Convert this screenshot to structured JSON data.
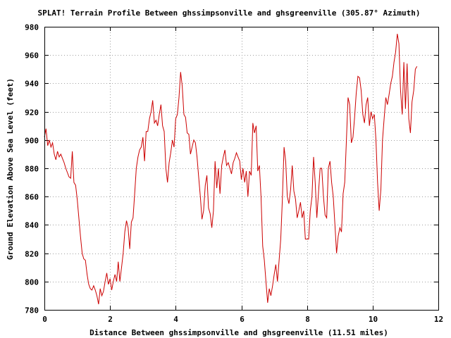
{
  "chart_data": {
    "type": "line",
    "title": "SPLAT! Terrain Profile Between ghssimpsonville and ghsgreenville (305.87° Azimuth)",
    "xlabel": "Distance Between ghssimpsonville and ghsgreenville (11.51 miles)",
    "ylabel": "Ground Elevation Above Sea Level (feet)",
    "xlim": [
      0,
      12
    ],
    "ylim": [
      780,
      980
    ],
    "xticks": [
      0,
      2,
      4,
      6,
      8,
      10,
      12
    ],
    "yticks": [
      780,
      800,
      820,
      840,
      860,
      880,
      900,
      920,
      940,
      960,
      980
    ],
    "grid": true,
    "line_color": "#cc0000",
    "series": [
      {
        "values": [
          [
            0.0,
            902
          ],
          [
            0.05,
            908
          ],
          [
            0.1,
            896
          ],
          [
            0.15,
            900
          ],
          [
            0.2,
            895
          ],
          [
            0.25,
            898
          ],
          [
            0.3,
            890
          ],
          [
            0.35,
            886
          ],
          [
            0.4,
            892
          ],
          [
            0.45,
            888
          ],
          [
            0.5,
            890
          ],
          [
            0.55,
            887
          ],
          [
            0.6,
            884
          ],
          [
            0.65,
            880
          ],
          [
            0.7,
            877
          ],
          [
            0.75,
            874
          ],
          [
            0.8,
            873
          ],
          [
            0.85,
            892
          ],
          [
            0.9,
            870
          ],
          [
            0.95,
            868
          ],
          [
            1.0,
            858
          ],
          [
            1.05,
            845
          ],
          [
            1.1,
            832
          ],
          [
            1.15,
            820
          ],
          [
            1.2,
            816
          ],
          [
            1.25,
            815
          ],
          [
            1.3,
            805
          ],
          [
            1.35,
            798
          ],
          [
            1.4,
            795
          ],
          [
            1.45,
            794
          ],
          [
            1.5,
            797
          ],
          [
            1.55,
            794
          ],
          [
            1.6,
            790
          ],
          [
            1.65,
            784
          ],
          [
            1.7,
            795
          ],
          [
            1.75,
            790
          ],
          [
            1.8,
            793
          ],
          [
            1.85,
            800
          ],
          [
            1.9,
            806
          ],
          [
            1.95,
            798
          ],
          [
            2.0,
            802
          ],
          [
            2.05,
            794
          ],
          [
            2.1,
            800
          ],
          [
            2.15,
            805
          ],
          [
            2.2,
            800
          ],
          [
            2.25,
            814
          ],
          [
            2.3,
            800
          ],
          [
            2.35,
            810
          ],
          [
            2.4,
            820
          ],
          [
            2.45,
            835
          ],
          [
            2.5,
            843
          ],
          [
            2.55,
            838
          ],
          [
            2.6,
            823
          ],
          [
            2.65,
            842
          ],
          [
            2.7,
            845
          ],
          [
            2.75,
            862
          ],
          [
            2.8,
            880
          ],
          [
            2.85,
            888
          ],
          [
            2.9,
            893
          ],
          [
            2.95,
            895
          ],
          [
            3.0,
            902
          ],
          [
            3.05,
            885
          ],
          [
            3.1,
            906
          ],
          [
            3.15,
            906
          ],
          [
            3.2,
            915
          ],
          [
            3.25,
            920
          ],
          [
            3.3,
            928
          ],
          [
            3.35,
            912
          ],
          [
            3.4,
            914
          ],
          [
            3.45,
            910
          ],
          [
            3.5,
            918
          ],
          [
            3.55,
            925
          ],
          [
            3.6,
            910
          ],
          [
            3.65,
            906
          ],
          [
            3.7,
            880
          ],
          [
            3.75,
            870
          ],
          [
            3.8,
            884
          ],
          [
            3.85,
            891
          ],
          [
            3.9,
            900
          ],
          [
            3.95,
            895
          ],
          [
            4.0,
            915
          ],
          [
            4.05,
            918
          ],
          [
            4.1,
            930
          ],
          [
            4.15,
            948
          ],
          [
            4.2,
            938
          ],
          [
            4.25,
            918
          ],
          [
            4.3,
            916
          ],
          [
            4.35,
            905
          ],
          [
            4.4,
            904
          ],
          [
            4.45,
            890
          ],
          [
            4.5,
            895
          ],
          [
            4.55,
            900
          ],
          [
            4.6,
            898
          ],
          [
            4.65,
            888
          ],
          [
            4.7,
            874
          ],
          [
            4.75,
            860
          ],
          [
            4.8,
            844
          ],
          [
            4.85,
            850
          ],
          [
            4.9,
            868
          ],
          [
            4.95,
            875
          ],
          [
            5.0,
            852
          ],
          [
            5.05,
            848
          ],
          [
            5.1,
            838
          ],
          [
            5.15,
            850
          ],
          [
            5.2,
            885
          ],
          [
            5.25,
            866
          ],
          [
            5.3,
            880
          ],
          [
            5.35,
            862
          ],
          [
            5.4,
            882
          ],
          [
            5.45,
            888
          ],
          [
            5.5,
            893
          ],
          [
            5.55,
            882
          ],
          [
            5.6,
            884
          ],
          [
            5.65,
            880
          ],
          [
            5.7,
            876
          ],
          [
            5.75,
            884
          ],
          [
            5.8,
            887
          ],
          [
            5.85,
            891
          ],
          [
            5.9,
            888
          ],
          [
            5.95,
            885
          ],
          [
            6.0,
            872
          ],
          [
            6.05,
            880
          ],
          [
            6.1,
            870
          ],
          [
            6.15,
            878
          ],
          [
            6.2,
            860
          ],
          [
            6.25,
            878
          ],
          [
            6.3,
            875
          ],
          [
            6.35,
            912
          ],
          [
            6.4,
            905
          ],
          [
            6.45,
            910
          ],
          [
            6.5,
            878
          ],
          [
            6.55,
            882
          ],
          [
            6.6,
            860
          ],
          [
            6.65,
            825
          ],
          [
            6.7,
            815
          ],
          [
            6.75,
            800
          ],
          [
            6.8,
            785
          ],
          [
            6.85,
            795
          ],
          [
            6.9,
            790
          ],
          [
            6.95,
            797
          ],
          [
            7.0,
            805
          ],
          [
            7.05,
            812
          ],
          [
            7.1,
            800
          ],
          [
            7.15,
            815
          ],
          [
            7.2,
            830
          ],
          [
            7.25,
            858
          ],
          [
            7.3,
            895
          ],
          [
            7.35,
            885
          ],
          [
            7.4,
            860
          ],
          [
            7.45,
            855
          ],
          [
            7.5,
            865
          ],
          [
            7.55,
            882
          ],
          [
            7.6,
            864
          ],
          [
            7.65,
            858
          ],
          [
            7.7,
            845
          ],
          [
            7.75,
            850
          ],
          [
            7.8,
            856
          ],
          [
            7.85,
            845
          ],
          [
            7.9,
            850
          ],
          [
            7.95,
            830
          ],
          [
            8.0,
            830
          ],
          [
            8.05,
            830
          ],
          [
            8.1,
            850
          ],
          [
            8.15,
            860
          ],
          [
            8.2,
            888
          ],
          [
            8.25,
            870
          ],
          [
            8.3,
            845
          ],
          [
            8.35,
            863
          ],
          [
            8.4,
            880
          ],
          [
            8.45,
            880
          ],
          [
            8.5,
            860
          ],
          [
            8.55,
            847
          ],
          [
            8.6,
            845
          ],
          [
            8.65,
            880
          ],
          [
            8.7,
            885
          ],
          [
            8.75,
            870
          ],
          [
            8.8,
            860
          ],
          [
            8.85,
            840
          ],
          [
            8.9,
            820
          ],
          [
            8.95,
            832
          ],
          [
            9.0,
            838
          ],
          [
            9.05,
            835
          ],
          [
            9.1,
            862
          ],
          [
            9.15,
            870
          ],
          [
            9.2,
            900
          ],
          [
            9.25,
            930
          ],
          [
            9.3,
            925
          ],
          [
            9.35,
            898
          ],
          [
            9.4,
            902
          ],
          [
            9.45,
            916
          ],
          [
            9.5,
            933
          ],
          [
            9.55,
            945
          ],
          [
            9.6,
            944
          ],
          [
            9.65,
            935
          ],
          [
            9.7,
            918
          ],
          [
            9.75,
            912
          ],
          [
            9.8,
            925
          ],
          [
            9.85,
            930
          ],
          [
            9.9,
            910
          ],
          [
            9.95,
            920
          ],
          [
            10.0,
            915
          ],
          [
            10.05,
            918
          ],
          [
            10.1,
            900
          ],
          [
            10.15,
            870
          ],
          [
            10.2,
            850
          ],
          [
            10.25,
            865
          ],
          [
            10.3,
            900
          ],
          [
            10.35,
            915
          ],
          [
            10.4,
            930
          ],
          [
            10.45,
            925
          ],
          [
            10.5,
            932
          ],
          [
            10.55,
            940
          ],
          [
            10.6,
            945
          ],
          [
            10.65,
            955
          ],
          [
            10.7,
            962
          ],
          [
            10.75,
            975
          ],
          [
            10.8,
            968
          ],
          [
            10.85,
            935
          ],
          [
            10.9,
            918
          ],
          [
            10.95,
            955
          ],
          [
            11.0,
            922
          ],
          [
            11.05,
            954
          ],
          [
            11.1,
            915
          ],
          [
            11.15,
            905
          ],
          [
            11.2,
            927
          ],
          [
            11.25,
            935
          ],
          [
            11.3,
            950
          ],
          [
            11.35,
            952
          ]
        ]
      }
    ]
  }
}
